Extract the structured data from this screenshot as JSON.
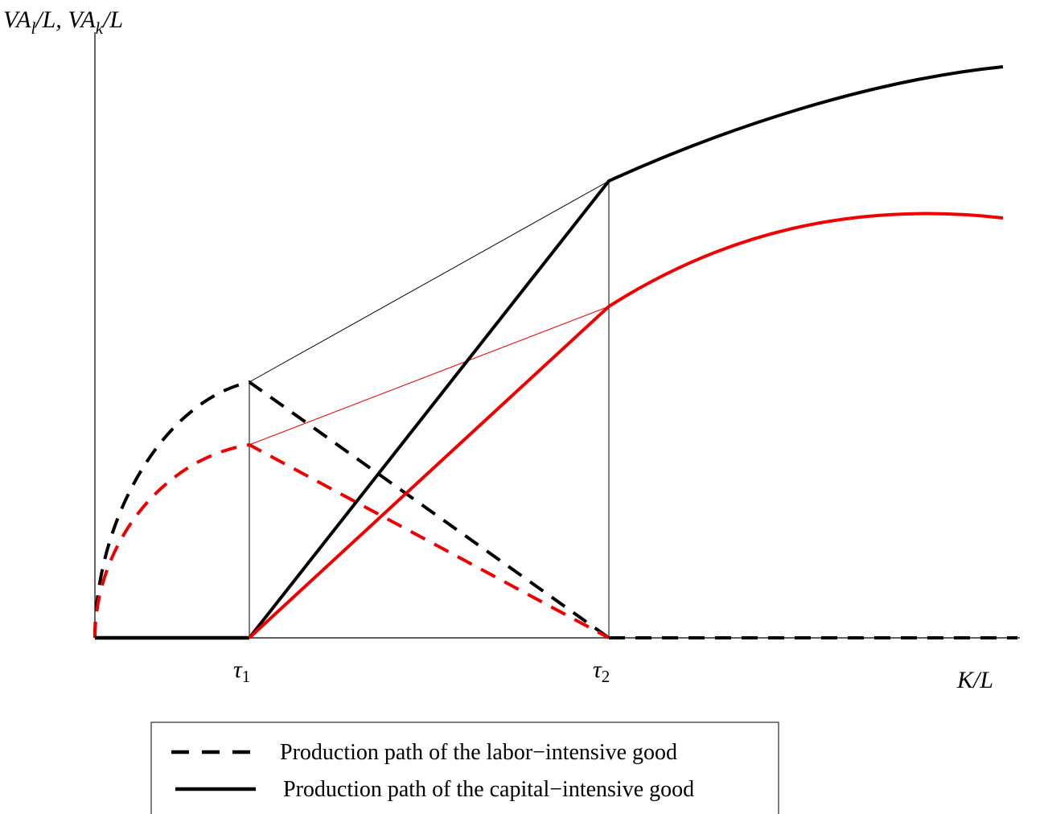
{
  "y_axis_label": [
    "VA",
    "l",
    "/L, ",
    "VA",
    "k",
    "/L"
  ],
  "x_axis_label": "K/L",
  "ticks": [
    [
      "τ",
      "1"
    ],
    [
      "τ",
      "2"
    ]
  ],
  "legend": [
    "Production path of the labor−intensive good",
    "Production path of the capital−intensive good"
  ]
}
